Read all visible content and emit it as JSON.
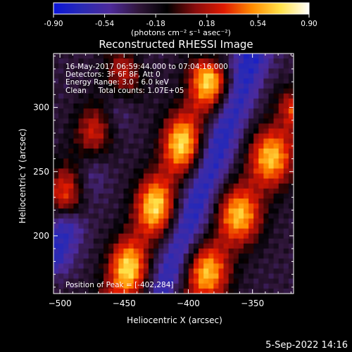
{
  "chart_data": {
    "type": "heatmap",
    "title": "Reconstructed RHESSI Image",
    "xlabel": "Heliocentric X (arcsec)",
    "ylabel": "Heliocentric Y (arcsec)",
    "xlim": [
      -505,
      -318
    ],
    "ylim": [
      155,
      342
    ],
    "x_ticks": [
      -500,
      -450,
      -400,
      -350
    ],
    "y_ticks": [
      200,
      250,
      300
    ],
    "colorbar": {
      "range": [
        -0.9,
        0.9
      ],
      "ticks": [
        "-0.90",
        "-0.54",
        "-0.18",
        "0.18",
        "0.54",
        "0.90"
      ],
      "unit_label": "(photons cm⁻² s⁻¹ asec⁻²)",
      "colors": [
        "#0a14d8",
        "#2a2ab4",
        "#4d2a9a",
        "#30163a",
        "#000000",
        "#8a0c0c",
        "#e01a00",
        "#ff8c00",
        "#ffe24a",
        "#ffffff"
      ]
    },
    "annotations": {
      "line1": "16-May-2017 06:59:44.000 to 07:04:16.000",
      "line2": "Detectors: 3F 6F 8F, Att 0",
      "line3": "Energy Range: 3.0 - 6.0 keV",
      "line4": "Clean     Total counts: 1.07E+05",
      "peak": "Position of Peak = [-402,284]"
    },
    "features": {
      "peak_position": [
        -402,
        284
      ],
      "bright_bands": [
        {
          "start": [
            -495,
            228
          ],
          "end": [
            -440,
            342
          ],
          "peak": 0.75,
          "width": 18
        },
        {
          "start": [
            -455,
            155
          ],
          "end": [
            -383,
            322
          ],
          "peak": 0.9,
          "width": 18
        },
        {
          "start": [
            -395,
            155
          ],
          "end": [
            -318,
            292
          ],
          "peak": 0.8,
          "width": 20
        }
      ],
      "dark_bands": [
        {
          "start": [
            -505,
            185
          ],
          "end": [
            -438,
            342
          ],
          "peak": -0.8,
          "width": 16
        },
        {
          "start": [
            -420,
            155
          ],
          "end": [
            -350,
            342
          ],
          "peak": -0.85,
          "width": 16
        }
      ]
    }
  },
  "footer": {
    "date": "5-Sep-2022 14:16"
  }
}
